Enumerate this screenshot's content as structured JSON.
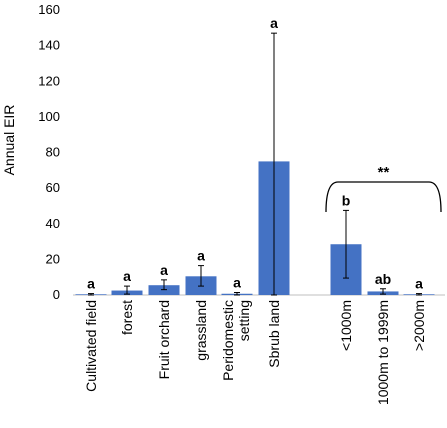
{
  "chart_data": {
    "type": "bar",
    "ylabel": "Annual EIR",
    "xlabel": "",
    "ylim": [
      0,
      160
    ],
    "yticks": [
      0,
      20,
      40,
      60,
      80,
      100,
      120,
      140,
      160
    ],
    "grid": false,
    "bar_color": "#4472C4",
    "groups": [
      {
        "categories": [
          "Cultivated field",
          "forest",
          "Fruit orchard",
          "grassland",
          "Peridomestic setting",
          "Sbrub land"
        ],
        "values": [
          0.4,
          2.5,
          5.5,
          10.5,
          0.7,
          75
        ],
        "error_low": [
          0,
          0.5,
          3,
          5,
          0,
          0
        ],
        "error_high": [
          0.8,
          5,
          8.5,
          16.5,
          1.4,
          147
        ],
        "significance": [
          "a",
          "a",
          "a",
          "a",
          "a",
          "a"
        ]
      },
      {
        "categories": [
          "<1000m",
          "1000m to 1999m",
          ">2000m"
        ],
        "values": [
          28.5,
          2,
          0.4
        ],
        "error_low": [
          9.5,
          0.5,
          0
        ],
        "error_high": [
          47.5,
          3.5,
          0.8
        ],
        "significance": [
          "b",
          "ab",
          "a"
        ],
        "bracket_label": "**"
      }
    ]
  }
}
